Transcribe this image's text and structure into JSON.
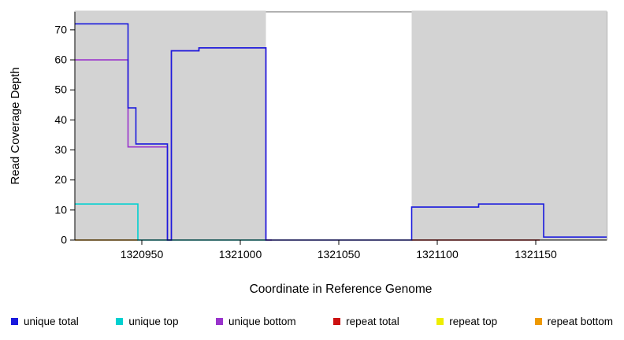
{
  "chart_data": {
    "type": "line",
    "title": "",
    "xlabel": "Coordinate in Reference Genome",
    "ylabel": "Read Coverage Depth",
    "xlim": [
      1320916,
      1321186
    ],
    "ylim": [
      0,
      76
    ],
    "x_ticks": [
      1320950,
      1321000,
      1321050,
      1321100,
      1321150
    ],
    "y_ticks": [
      0,
      10,
      20,
      30,
      40,
      50,
      60,
      70
    ],
    "grid": false,
    "legend_position": "bottom",
    "plot_background": "#ffffff",
    "shaded_region_color": "#d3d3d3",
    "shaded_regions": [
      {
        "x0": 1320916,
        "x1": 1321013
      },
      {
        "x0": 1321087,
        "x1": 1321186
      }
    ],
    "draw_order": [
      4,
      5,
      3,
      2,
      1,
      0
    ],
    "series": [
      {
        "name": "unique total",
        "color": "#1a1add",
        "segments": [
          [
            1320916,
            1320943,
            72
          ],
          [
            1320943,
            1320947,
            44
          ],
          [
            1320947,
            1320963,
            32
          ],
          [
            1320963,
            1320965,
            0
          ],
          [
            1320965,
            1320979,
            63
          ],
          [
            1320979,
            1321013,
            64
          ],
          [
            1321013,
            1321087,
            0
          ],
          [
            1321087,
            1321121,
            11
          ],
          [
            1321121,
            1321154,
            12
          ],
          [
            1321154,
            1321186,
            1
          ]
        ]
      },
      {
        "name": "unique top",
        "color": "#00d0d0",
        "segments": [
          [
            1320916,
            1320948,
            12
          ],
          [
            1320948,
            1321013,
            0
          ]
        ]
      },
      {
        "name": "unique bottom",
        "color": "#9933cc",
        "segments": [
          [
            1320916,
            1320943,
            60
          ],
          [
            1320943,
            1320963,
            31
          ],
          [
            1320963,
            1320965,
            0
          ],
          [
            1320965,
            1320979,
            63
          ],
          [
            1320979,
            1321013,
            64
          ],
          [
            1321013,
            1321016,
            0
          ]
        ]
      },
      {
        "name": "repeat total",
        "color": "#cc1111",
        "segments": [
          [
            1321087,
            1321152,
            0
          ]
        ]
      },
      {
        "name": "repeat top",
        "color": "#eeee00",
        "segments": []
      },
      {
        "name": "repeat bottom",
        "color": "#ee9900",
        "segments": [
          [
            1320916,
            1320948,
            0
          ]
        ]
      }
    ]
  }
}
